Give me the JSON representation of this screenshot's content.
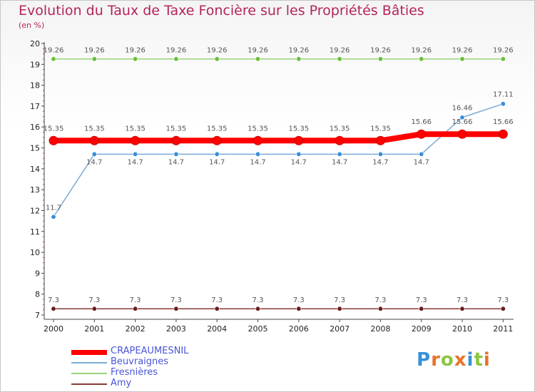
{
  "header": {
    "title": "Evolution du Taux de Taxe Foncière sur les Propriétés Bâties",
    "subtitle": "(en %)"
  },
  "logo": {
    "text": "Proxiti",
    "letters": [
      "P",
      "r",
      "o",
      "x",
      "i",
      "t",
      "i"
    ],
    "colors": [
      "#3a8fd8",
      "#e8732a",
      "#8cc63e",
      "#e8732a",
      "#3a8fd8",
      "#8cc63e",
      "#e8732a"
    ]
  },
  "chart_data": {
    "type": "line",
    "title": "Evolution du Taux de Taxe Foncière sur les Propriétés Bâties",
    "ylabel": "(en %)",
    "xlabel": "",
    "ylim": [
      7,
      20
    ],
    "grid": false,
    "legend_position": "bottom-left",
    "categories": [
      "2000",
      "2001",
      "2002",
      "2003",
      "2004",
      "2005",
      "2006",
      "2007",
      "2008",
      "2009",
      "2010",
      "2011"
    ],
    "yticks": [
      7,
      8,
      9,
      10,
      11,
      12,
      13,
      14,
      15,
      16,
      17,
      18,
      19,
      20
    ],
    "series": [
      {
        "name": "CRAPEAUMESNIL",
        "color": "#ff0000",
        "emphasis": true,
        "values": [
          15.35,
          15.35,
          15.35,
          15.35,
          15.35,
          15.35,
          15.35,
          15.35,
          15.35,
          15.66,
          15.66,
          15.66
        ],
        "labels": [
          "15.35",
          "15.35",
          "15.35",
          "15.35",
          "15.35",
          "15.35",
          "15.35",
          "15.35",
          "15.35",
          "15.66",
          "15.66",
          "15.66"
        ]
      },
      {
        "name": "Beuvraignes",
        "color": "#7aaad6",
        "marker": "#3a8fd8",
        "values": [
          11.7,
          14.7,
          14.7,
          14.7,
          14.7,
          14.7,
          14.7,
          14.7,
          14.7,
          14.7,
          16.46,
          17.11
        ],
        "labels": [
          "11.7",
          "14.7",
          "14.7",
          "14.7",
          "14.7",
          "14.7",
          "14.7",
          "14.7",
          "14.7",
          "14.7",
          "16.46",
          "17.11"
        ]
      },
      {
        "name": "Fresnières",
        "color": "#99d47a",
        "marker": "#6abf3a",
        "values": [
          19.26,
          19.26,
          19.26,
          19.26,
          19.26,
          19.26,
          19.26,
          19.26,
          19.26,
          19.26,
          19.26,
          19.26
        ],
        "labels": [
          "19.26",
          "19.26",
          "19.26",
          "19.26",
          "19.26",
          "19.26",
          "19.26",
          "19.26",
          "19.26",
          "19.26",
          "19.26",
          "19.26"
        ]
      },
      {
        "name": "Amy",
        "color": "#8b3a3a",
        "marker": "#6b1e1e",
        "values": [
          7.3,
          7.3,
          7.3,
          7.3,
          7.3,
          7.3,
          7.3,
          7.3,
          7.3,
          7.3,
          7.3,
          7.3
        ],
        "labels": [
          "7.3",
          "7.3",
          "7.3",
          "7.3",
          "7.3",
          "7.3",
          "7.3",
          "7.3",
          "7.3",
          "7.3",
          "7.3",
          "7.3"
        ]
      }
    ]
  }
}
